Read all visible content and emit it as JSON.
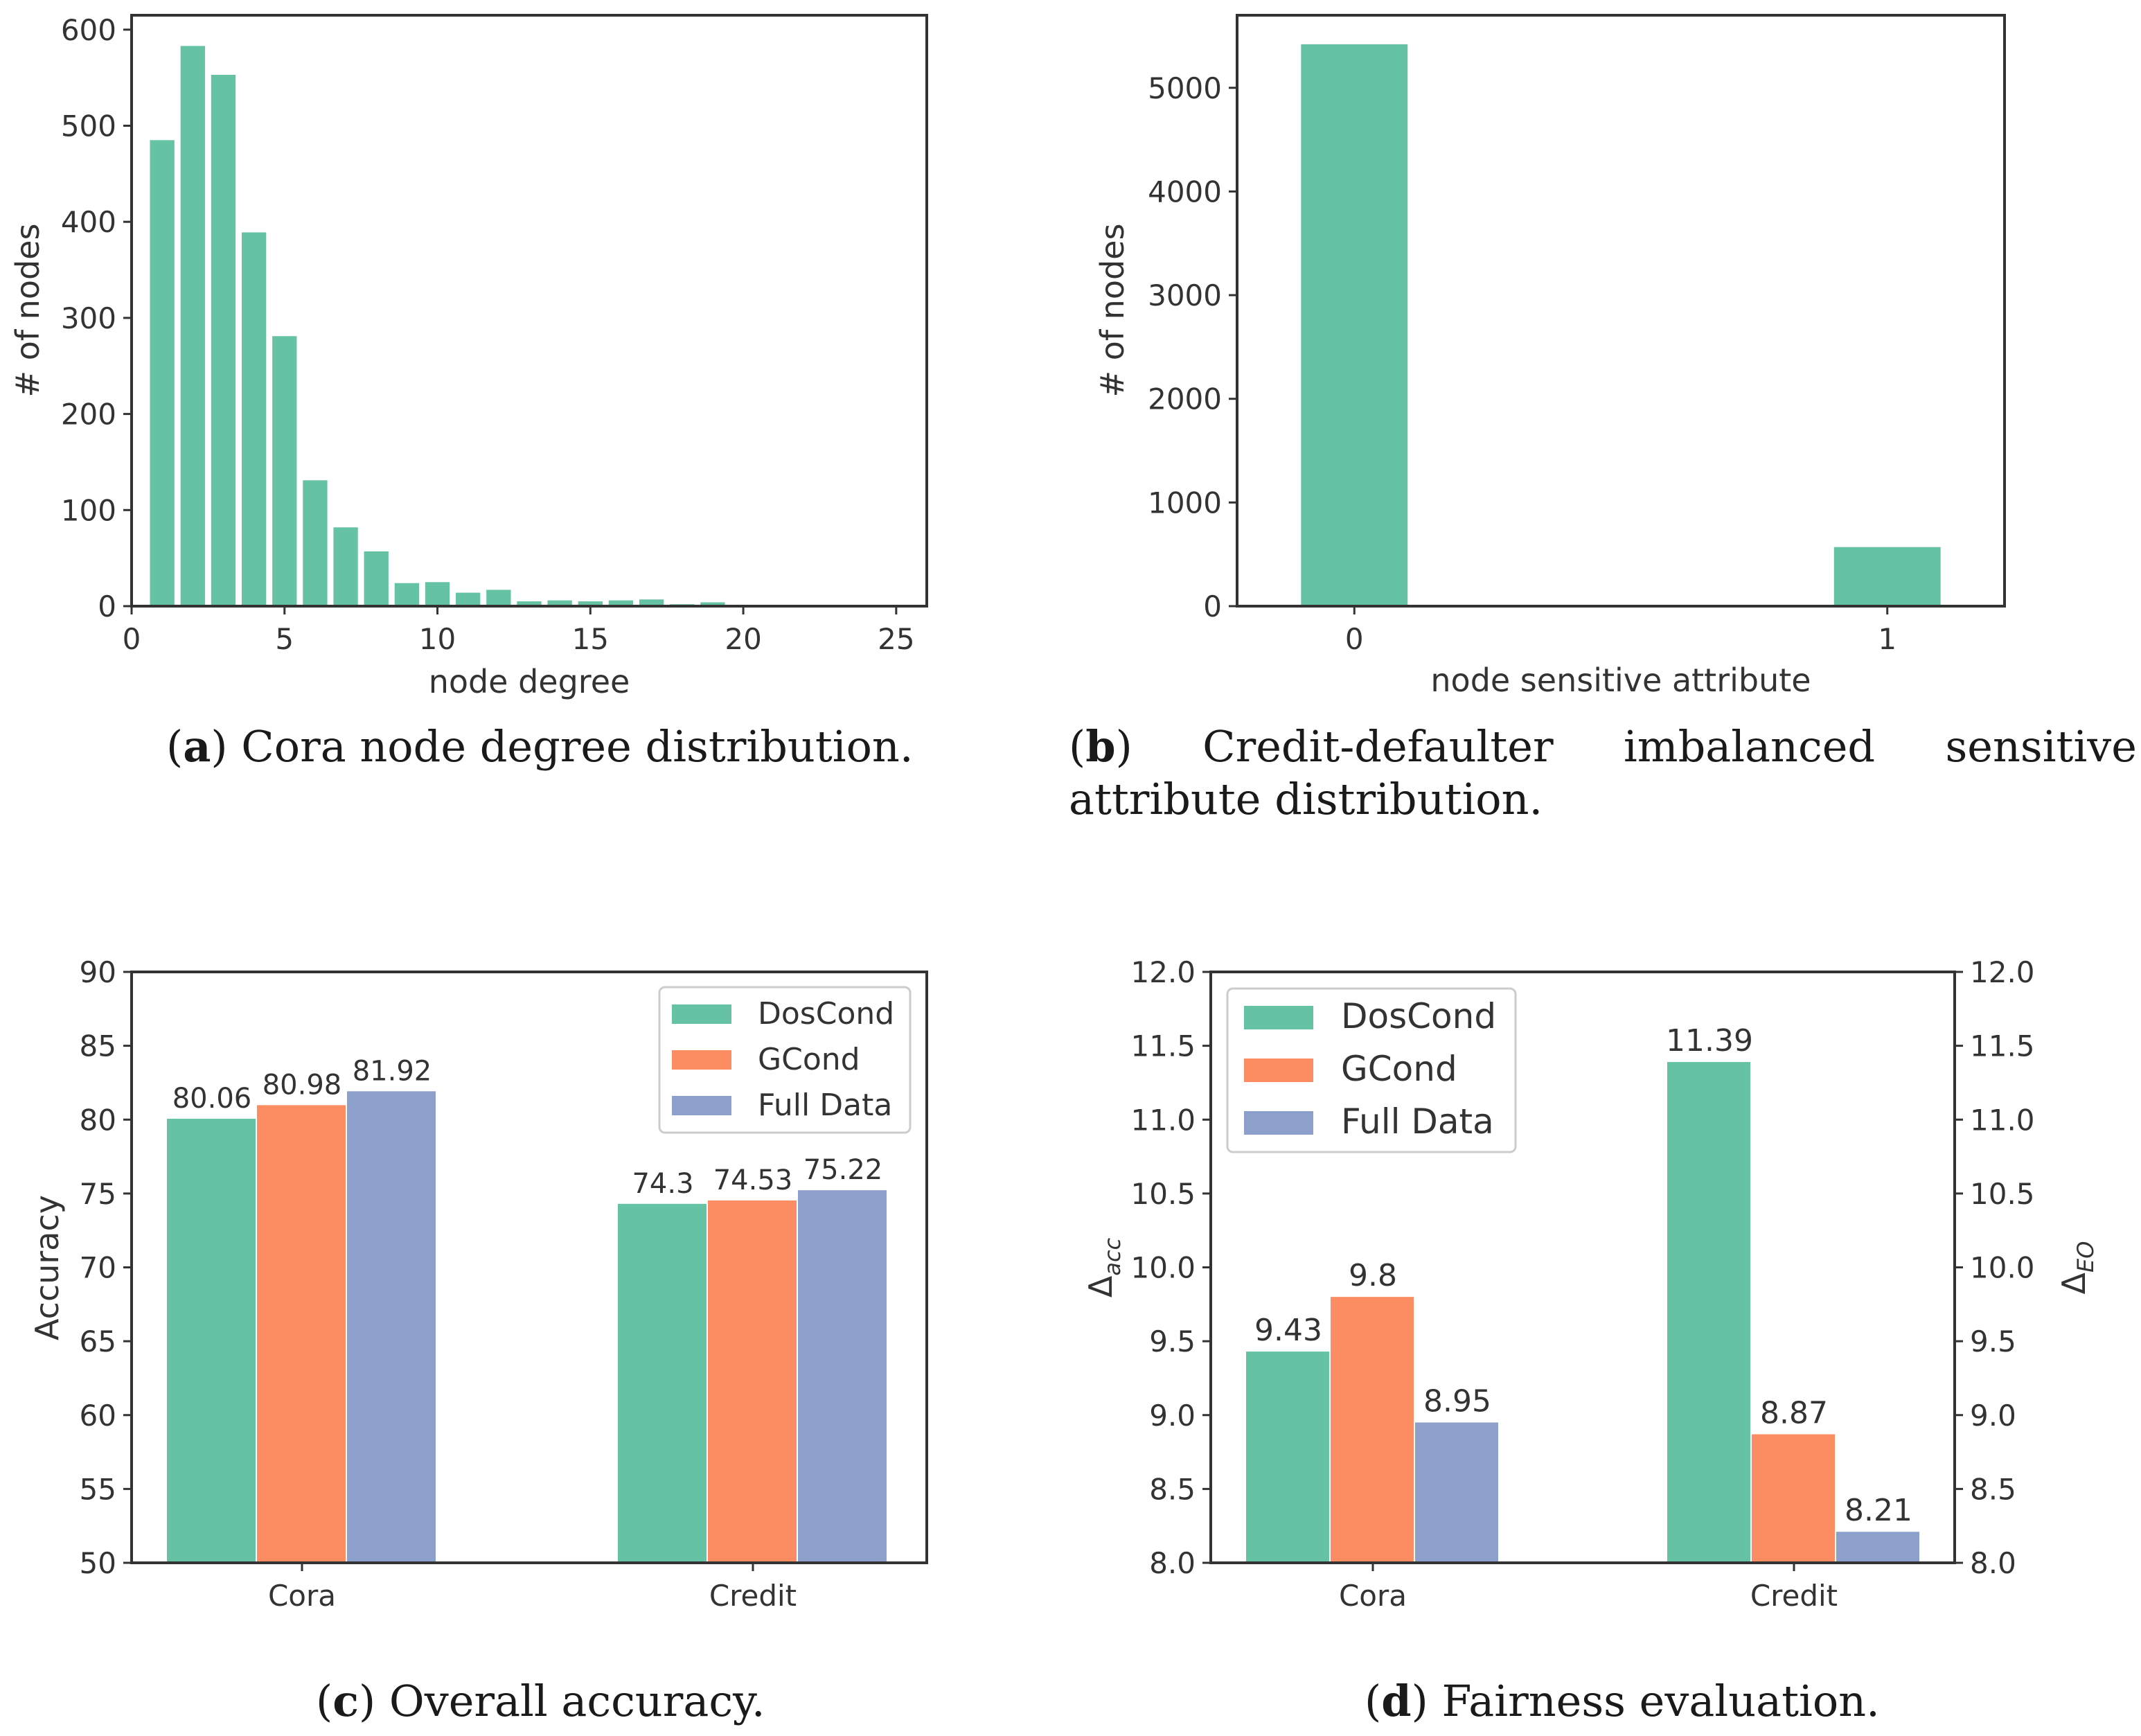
{
  "colors": {
    "green": "#66c2a5",
    "orange": "#fc8d62",
    "blue": "#8da0cb",
    "axis": "#333333"
  },
  "captions": {
    "a": {
      "letter": "a",
      "text": " Cora node degree distribution."
    },
    "b": {
      "letter": "b",
      "text": " Credit-defaulter imbalanced sensitive attribute distribution."
    },
    "c": {
      "letter": "c",
      "text": " Overall accuracy."
    },
    "d": {
      "letter": "d",
      "text": " Fairness evaluation."
    }
  },
  "chart_data": [
    {
      "id": "a",
      "type": "bar",
      "xlabel": "node degree",
      "ylabel": "# of nodes",
      "xlim": [
        0,
        26
      ],
      "ylim": [
        0,
        615
      ],
      "xticks": [
        0,
        5,
        10,
        15,
        20,
        25
      ],
      "yticks": [
        0,
        100,
        200,
        300,
        400,
        500,
        600
      ],
      "x": [
        1,
        2,
        3,
        4,
        5,
        6,
        7,
        8,
        9,
        10,
        11,
        12,
        13,
        14,
        15,
        16,
        17,
        18,
        19
      ],
      "values": [
        485,
        583,
        553,
        389,
        281,
        131,
        82,
        57,
        24,
        25,
        14,
        17,
        5,
        6,
        5,
        6,
        7,
        2,
        4
      ]
    },
    {
      "id": "b",
      "type": "bar",
      "xlabel": "node sensitive attribute",
      "ylabel": "# of nodes",
      "xlim": [
        -0.22,
        1.22
      ],
      "ylim": [
        0,
        5700
      ],
      "categories": [
        "0",
        "1"
      ],
      "yticks": [
        0,
        1000,
        2000,
        3000,
        4000,
        5000
      ],
      "values": [
        5420,
        570
      ]
    },
    {
      "id": "c",
      "type": "bar",
      "ylabel": "Accuracy",
      "ylim": [
        50,
        90
      ],
      "yticks": [
        50,
        55,
        60,
        65,
        70,
        75,
        80,
        85,
        90
      ],
      "categories": [
        "Cora",
        "Credit"
      ],
      "legend": "top-right",
      "series": [
        {
          "name": "DosCond",
          "values": [
            80.06,
            74.3
          ],
          "labels": [
            "80.06",
            "74.3"
          ]
        },
        {
          "name": "GCond",
          "values": [
            80.98,
            74.53
          ],
          "labels": [
            "80.98",
            "74.53"
          ]
        },
        {
          "name": "Full Data",
          "values": [
            81.92,
            75.22
          ],
          "labels": [
            "81.92",
            "75.22"
          ]
        }
      ]
    },
    {
      "id": "d",
      "type": "bar",
      "ylabel": "Δacc",
      "ylabel_base": "Δ",
      "ylabel_sub": "acc",
      "ylabel2": "ΔEO",
      "ylabel2_base": "Δ",
      "ylabel2_sub": "EO",
      "ylim": [
        8.0,
        12.0
      ],
      "yticks": [
        "8.0",
        "8.5",
        "9.0",
        "9.5",
        "10.0",
        "10.5",
        "11.0",
        "11.5",
        "12.0"
      ],
      "categories": [
        "Cora",
        "Credit"
      ],
      "legend": "top-left",
      "series": [
        {
          "name": "DosCond",
          "values": [
            9.43,
            11.39
          ],
          "labels": [
            "9.43",
            "11.39"
          ]
        },
        {
          "name": "GCond",
          "values": [
            9.8,
            8.87
          ],
          "labels": [
            "9.8",
            "8.87"
          ]
        },
        {
          "name": "Full Data",
          "values": [
            8.95,
            8.21
          ],
          "labels": [
            "8.95",
            "8.21"
          ]
        }
      ]
    }
  ]
}
